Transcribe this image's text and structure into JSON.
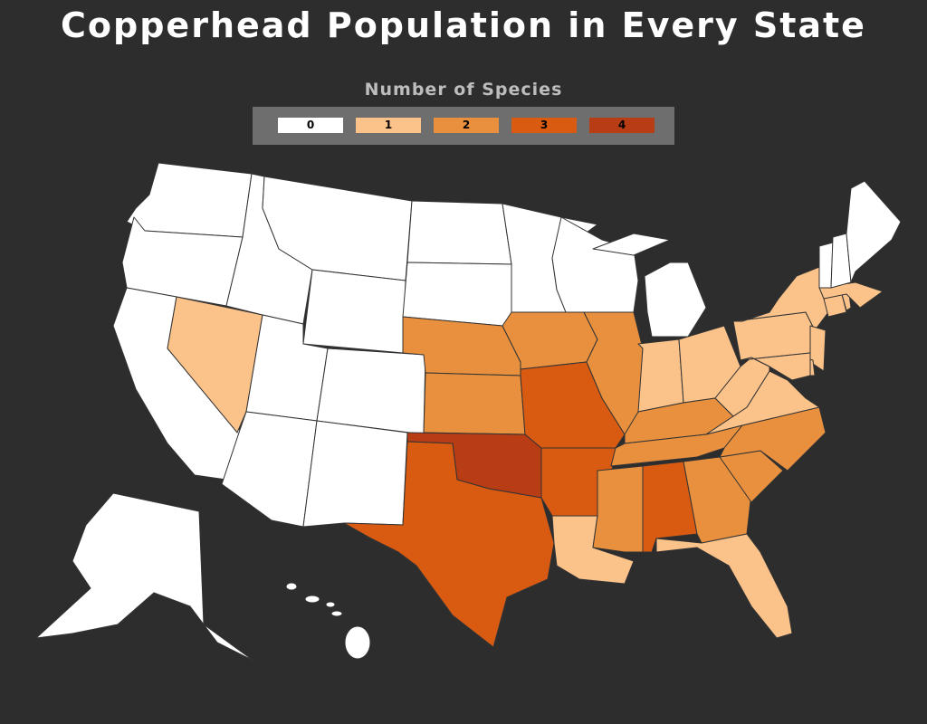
{
  "title": "Copperhead Population in Every State",
  "legend": {
    "title": "Number of Species",
    "items": [
      {
        "label": "0",
        "color": "#ffffff"
      },
      {
        "label": "1",
        "color": "#fbc28a"
      },
      {
        "label": "2",
        "color": "#e8903e"
      },
      {
        "label": "3",
        "color": "#d95b12"
      },
      {
        "label": "4",
        "color": "#b83c14"
      }
    ]
  },
  "background_color": "#2d2d2d",
  "state_values": {
    "WA": 0,
    "OR": 0,
    "CA": 0,
    "ID": 0,
    "MT": 0,
    "WY": 0,
    "UT": 0,
    "CO": 0,
    "AZ": 0,
    "NM": 0,
    "ND": 0,
    "SD": 0,
    "MN": 0,
    "WI": 0,
    "MI": 0,
    "ME": 0,
    "NH": 0,
    "VT": 0,
    "AK": 0,
    "HI": 0,
    "NV": 1,
    "IN": 1,
    "OH": 1,
    "PA": 1,
    "NY": 1,
    "NJ": 1,
    "DE": 1,
    "MD": 1,
    "WV": 1,
    "VA": 1,
    "MA": 1,
    "CT": 1,
    "RI": 1,
    "LA": 1,
    "FL": 1,
    "NE": 2,
    "KS": 2,
    "IA": 2,
    "IL": 2,
    "KY": 2,
    "TN": 2,
    "NC": 2,
    "SC": 2,
    "GA": 2,
    "MS": 2,
    "TX": 3,
    "MO": 3,
    "AR": 3,
    "AL": 3,
    "OK": 4
  }
}
